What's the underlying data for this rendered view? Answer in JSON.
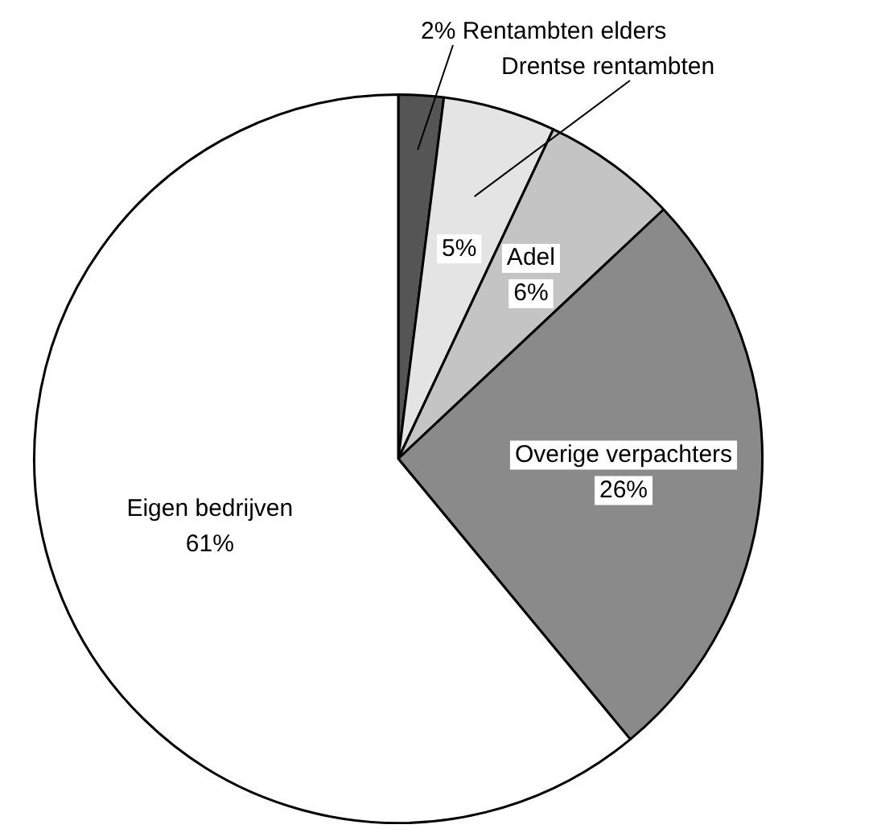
{
  "chart_data": {
    "type": "pie",
    "categories": [
      "Rentambten elders",
      "Drentse rentambten",
      "Adel",
      "Overige verpachters",
      "Eigen bedrijven"
    ],
    "values": [
      2,
      5,
      6,
      26,
      61
    ],
    "value_labels": [
      "2%",
      "5%",
      "6%",
      "26%",
      "61%"
    ],
    "colors": [
      "#555555",
      "#e4e4e4",
      "#c4c4c4",
      "#8a8a8a",
      "#ffffff"
    ],
    "legend": false
  }
}
